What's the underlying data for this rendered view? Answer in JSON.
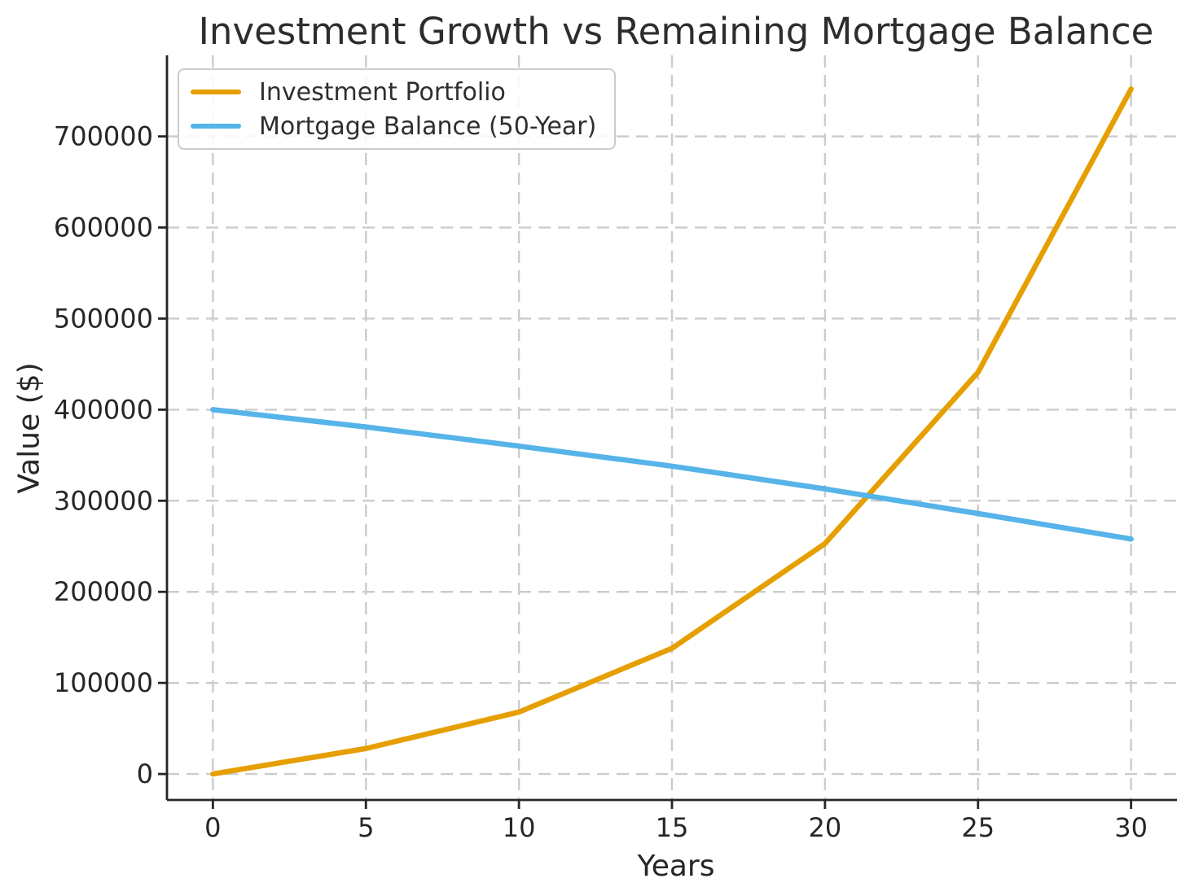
{
  "chart_data": {
    "type": "line",
    "title": "Investment Growth vs Remaining Mortgage Balance",
    "xlabel": "Years",
    "ylabel": "Value ($)",
    "x": [
      0,
      5,
      10,
      15,
      20,
      25,
      30
    ],
    "series": [
      {
        "name": "Investment Portfolio",
        "color": "#E69F00",
        "values": [
          0,
          28000,
          68000,
          138000,
          253000,
          441000,
          752000
        ]
      },
      {
        "name": "Mortgage Balance (50-Year)",
        "color": "#56B4E9",
        "values": [
          400000,
          381000,
          360000,
          338000,
          313000,
          286000,
          258000
        ]
      }
    ],
    "xticks": [
      0,
      5,
      10,
      15,
      20,
      25,
      30
    ],
    "yticks": [
      0,
      100000,
      200000,
      300000,
      400000,
      500000,
      600000,
      700000
    ],
    "xlim": [
      -1.5,
      31.5
    ],
    "ylim": [
      -28500,
      789000
    ],
    "grid": true,
    "grid_style": "dashed",
    "legend_position": "upper left",
    "background_color": "#ffffff",
    "grid_color": "#cccccc",
    "text_color": "#262626"
  }
}
